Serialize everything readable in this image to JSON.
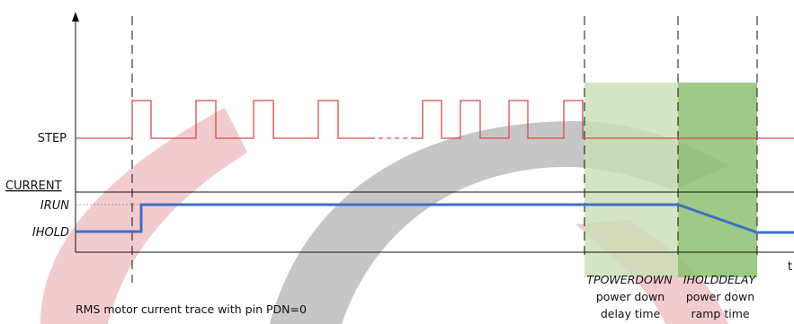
{
  "labels": {
    "step": "STEP",
    "current": "CURRENT",
    "irun": "IRUN",
    "ihold": "IHOLD",
    "time_axis": "t"
  },
  "annotations": {
    "tpowerdown": "TPOWERDOWN",
    "tpowerdown_desc_1": "power down",
    "tpowerdown_desc_2": "delay time",
    "iholddelay": "IHOLDDELAY",
    "iholddelay_desc_1": "power down",
    "iholddelay_desc_2": "ramp time"
  },
  "caption": "RMS motor current trace with pin PDN=0",
  "colors": {
    "step_signal": "#d94a4a",
    "current_trace": "#3f6fc4",
    "delay_region": "#c9dfb4",
    "ramp_region": "#8dbf72",
    "watermark_red": "#e8a0a8",
    "watermark_gray": "#a8a8a8",
    "axis": "#111111"
  },
  "icons": {
    "watermark": "company-logo-watermark"
  }
}
